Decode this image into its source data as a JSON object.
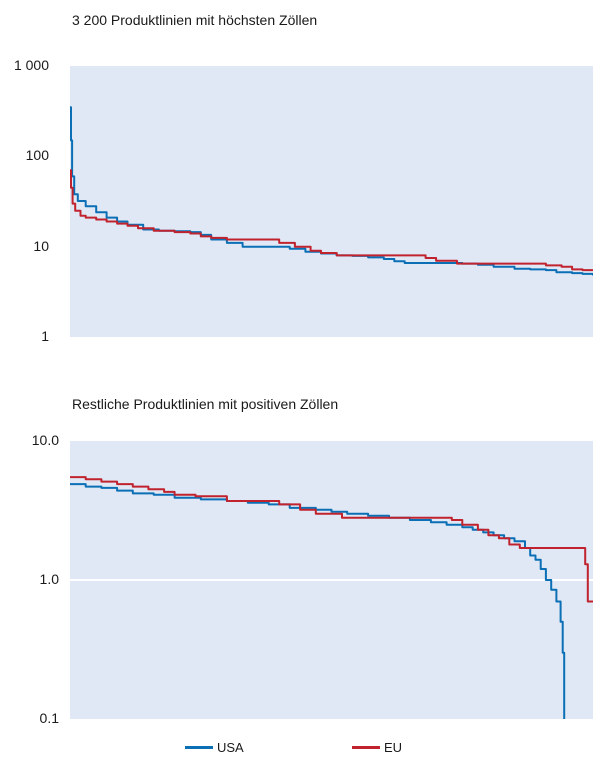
{
  "chart_data": [
    {
      "type": "line",
      "title": "3 200 Produktlinien mit höchsten Zöllen",
      "yscale": "log",
      "ylim": [
        1,
        1000
      ],
      "yticks": [
        {
          "value": 1,
          "label": "1"
        },
        {
          "value": 10,
          "label": "10"
        },
        {
          "value": 100,
          "label": "100"
        },
        {
          "value": 1000,
          "label": "1 000"
        }
      ],
      "grid": false,
      "xlim": [
        0,
        100
      ],
      "series": [
        {
          "name": "USA",
          "color": "#0a6fb5",
          "points": [
            [
              0,
              350
            ],
            [
              0.2,
              150
            ],
            [
              0.4,
              60
            ],
            [
              0.8,
              38
            ],
            [
              1.5,
              32
            ],
            [
              3,
              28
            ],
            [
              5,
              24
            ],
            [
              7,
              21
            ],
            [
              9,
              19
            ],
            [
              11,
              17.5
            ],
            [
              14,
              15.5
            ],
            [
              17,
              15
            ],
            [
              20,
              14.8
            ],
            [
              23,
              14.5
            ],
            [
              25,
              13.5
            ],
            [
              27,
              12
            ],
            [
              30,
              11
            ],
            [
              33,
              10
            ],
            [
              40,
              10
            ],
            [
              42,
              9.5
            ],
            [
              45,
              8.8
            ],
            [
              48,
              8.4
            ],
            [
              51,
              8
            ],
            [
              54,
              7.9
            ],
            [
              57,
              7.6
            ],
            [
              60,
              7.3
            ],
            [
              62,
              6.9
            ],
            [
              64,
              6.6
            ],
            [
              70,
              6.6
            ],
            [
              75,
              6.5
            ],
            [
              78,
              6.3
            ],
            [
              81,
              6.0
            ],
            [
              85,
              5.7
            ],
            [
              88,
              5.6
            ],
            [
              91,
              5.5
            ],
            [
              93,
              5.2
            ],
            [
              96,
              5.1
            ],
            [
              98,
              5.0
            ],
            [
              100,
              4.8
            ]
          ]
        },
        {
          "name": "EU",
          "color": "#c0232e",
          "points": [
            [
              0,
              70
            ],
            [
              0.2,
              45
            ],
            [
              0.5,
              30
            ],
            [
              1,
              25
            ],
            [
              2,
              22
            ],
            [
              3,
              21
            ],
            [
              5,
              20
            ],
            [
              7,
              19
            ],
            [
              9,
              18
            ],
            [
              11,
              17
            ],
            [
              13,
              16
            ],
            [
              16,
              15
            ],
            [
              20,
              14.5
            ],
            [
              23,
              14
            ],
            [
              25,
              13
            ],
            [
              27,
              12.5
            ],
            [
              30,
              12
            ],
            [
              35,
              12
            ],
            [
              38,
              12
            ],
            [
              40,
              11
            ],
            [
              43,
              10
            ],
            [
              46,
              9
            ],
            [
              48,
              8.5
            ],
            [
              51,
              8
            ],
            [
              55,
              8
            ],
            [
              60,
              8
            ],
            [
              65,
              8
            ],
            [
              68,
              7.5
            ],
            [
              70,
              7
            ],
            [
              74,
              6.5
            ],
            [
              80,
              6.5
            ],
            [
              85,
              6.5
            ],
            [
              88,
              6.5
            ],
            [
              91,
              6.2
            ],
            [
              94,
              6.0
            ],
            [
              96,
              5.6
            ],
            [
              98,
              5.5
            ],
            [
              100,
              5.5
            ]
          ]
        }
      ]
    },
    {
      "type": "line",
      "title": "Restliche Produktlinien mit positiven Zöllen",
      "yscale": "log",
      "ylim": [
        0.1,
        10
      ],
      "yticks": [
        {
          "value": 0.1,
          "label": "0.1"
        },
        {
          "value": 1,
          "label": "1.0"
        },
        {
          "value": 10,
          "label": "10.0"
        }
      ],
      "grid": "y at 1.0",
      "xlim": [
        0,
        100
      ],
      "series": [
        {
          "name": "USA",
          "color": "#0a6fb5",
          "points": [
            [
              0,
              4.9
            ],
            [
              3,
              4.7
            ],
            [
              6,
              4.6
            ],
            [
              9,
              4.4
            ],
            [
              12,
              4.2
            ],
            [
              16,
              4.1
            ],
            [
              20,
              3.9
            ],
            [
              25,
              3.8
            ],
            [
              30,
              3.7
            ],
            [
              34,
              3.6
            ],
            [
              38,
              3.5
            ],
            [
              42,
              3.3
            ],
            [
              47,
              3.2
            ],
            [
              50,
              3.1
            ],
            [
              53,
              3.0
            ],
            [
              57,
              2.9
            ],
            [
              61,
              2.8
            ],
            [
              65,
              2.7
            ],
            [
              69,
              2.6
            ],
            [
              72,
              2.5
            ],
            [
              75,
              2.4
            ],
            [
              77,
              2.3
            ],
            [
              79,
              2.2
            ],
            [
              81,
              2.1
            ],
            [
              83,
              2.0
            ],
            [
              85,
              1.9
            ],
            [
              87,
              1.7
            ],
            [
              88,
              1.5
            ],
            [
              89,
              1.4
            ],
            [
              90,
              1.2
            ],
            [
              91,
              1.0
            ],
            [
              92,
              0.85
            ],
            [
              93,
              0.7
            ],
            [
              93.8,
              0.5
            ],
            [
              94.2,
              0.3
            ],
            [
              94.5,
              0.1
            ]
          ]
        },
        {
          "name": "EU",
          "color": "#c0232e",
          "points": [
            [
              0,
              5.5
            ],
            [
              3,
              5.3
            ],
            [
              6,
              5.1
            ],
            [
              9,
              4.9
            ],
            [
              12,
              4.7
            ],
            [
              15,
              4.5
            ],
            [
              18,
              4.3
            ],
            [
              20,
              4.1
            ],
            [
              24,
              4.0
            ],
            [
              28,
              4.0
            ],
            [
              30,
              3.7
            ],
            [
              35,
              3.7
            ],
            [
              38,
              3.7
            ],
            [
              40,
              3.5
            ],
            [
              44,
              3.2
            ],
            [
              47,
              3.0
            ],
            [
              50,
              3.0
            ],
            [
              52,
              2.8
            ],
            [
              58,
              2.8
            ],
            [
              65,
              2.8
            ],
            [
              70,
              2.8
            ],
            [
              73,
              2.7
            ],
            [
              75,
              2.5
            ],
            [
              78,
              2.3
            ],
            [
              80,
              2.1
            ],
            [
              82,
              2.0
            ],
            [
              84,
              1.8
            ],
            [
              86,
              1.7
            ],
            [
              90,
              1.7
            ],
            [
              95,
              1.7
            ],
            [
              98,
              1.7
            ],
            [
              98.5,
              1.3
            ],
            [
              99,
              0.7
            ],
            [
              100,
              0.7
            ]
          ]
        }
      ]
    }
  ],
  "legend": [
    {
      "label": "USA",
      "color": "#0a6fb5"
    },
    {
      "label": "EU",
      "color": "#c0232e"
    }
  ]
}
